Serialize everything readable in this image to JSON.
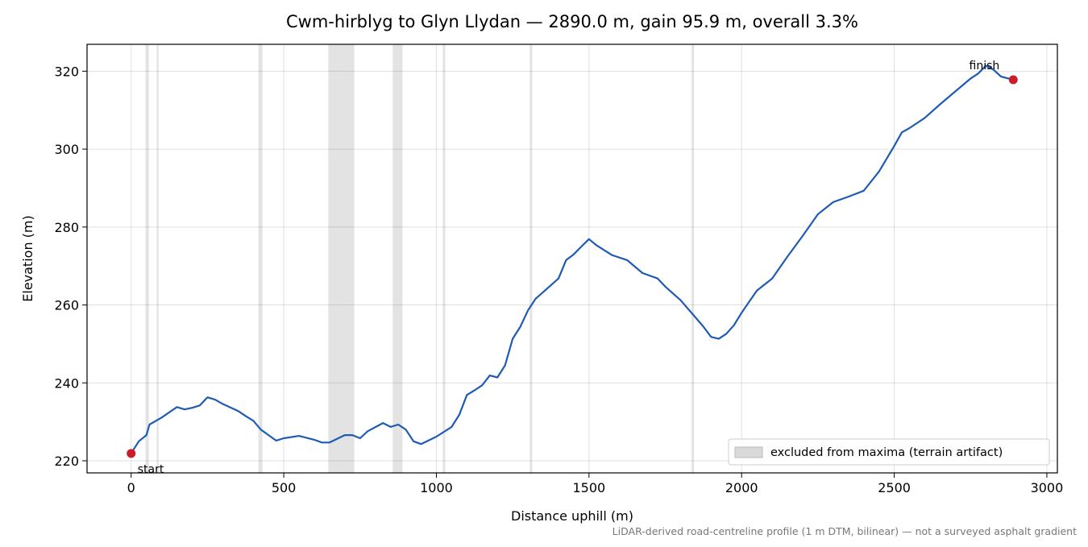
{
  "chart_data": {
    "type": "line",
    "title": "Cwm-hirblyg to Glyn Llydan — 2890.0 m, gain 95.9 m, overall 3.3%",
    "x_label": "Distance uphill (m)",
    "y_label": "Elevation (m)",
    "footnote": "LiDAR-derived road-centreline profile (1 m DTM, bilinear) — not a surveyed asphalt gradient",
    "x": [
      0,
      25,
      50,
      60,
      100,
      150,
      175,
      200,
      225,
      250,
      275,
      300,
      350,
      375,
      400,
      425,
      450,
      475,
      500,
      550,
      600,
      625,
      650,
      700,
      725,
      750,
      775,
      825,
      850,
      875,
      900,
      925,
      950,
      1000,
      1050,
      1075,
      1100,
      1125,
      1150,
      1175,
      1200,
      1225,
      1250,
      1275,
      1300,
      1325,
      1350,
      1400,
      1425,
      1450,
      1475,
      1500,
      1525,
      1575,
      1625,
      1675,
      1725,
      1750,
      1800,
      1850,
      1875,
      1900,
      1925,
      1950,
      1975,
      2000,
      2050,
      2100,
      2150,
      2200,
      2250,
      2300,
      2350,
      2400,
      2450,
      2500,
      2525,
      2550,
      2600,
      2650,
      2700,
      2750,
      2775,
      2800,
      2825,
      2850,
      2890
    ],
    "values": [
      221.9,
      225,
      226.6,
      229.3,
      231.1,
      233.8,
      233.2,
      233.6,
      234.2,
      236.3,
      235.7,
      234.6,
      232.8,
      231.5,
      230.3,
      228,
      226.6,
      225.2,
      225.8,
      226.4,
      225.4,
      224.7,
      224.7,
      226.6,
      226.6,
      225.8,
      227.6,
      229.7,
      228.7,
      229.3,
      228,
      225,
      224.3,
      226.2,
      228.7,
      231.8,
      236.9,
      238.1,
      239.4,
      241.9,
      241.4,
      244.5,
      251.3,
      254.4,
      258.6,
      261.6,
      263.3,
      266.8,
      271.5,
      273,
      275,
      276.9,
      275.3,
      272.8,
      271.5,
      268.2,
      266.8,
      264.7,
      261.2,
      256.7,
      254.4,
      251.8,
      251.3,
      252.6,
      254.8,
      258,
      263.7,
      266.8,
      272.4,
      277.7,
      283.3,
      286.4,
      287.8,
      289.3,
      294.2,
      300.8,
      304.3,
      305.4,
      308,
      311.5,
      314.8,
      318.1,
      319.4,
      321.4,
      320.4,
      318.6,
      317.8
    ],
    "color": "#1f5bb4",
    "excluded": {
      "label": "excluded from maxima (terrain artifact)",
      "color": "#d9d9d9",
      "ranges": [
        [
          47,
          58
        ],
        [
          84,
          90
        ],
        [
          417,
          430
        ],
        [
          646,
          731
        ],
        [
          857,
          889
        ],
        [
          1021,
          1029
        ],
        [
          1306,
          1314
        ],
        [
          1836,
          1844
        ]
      ]
    },
    "markers": [
      {
        "label": "start",
        "x": 0,
        "y": 221.9
      },
      {
        "label": "finish",
        "x": 2890,
        "y": 317.8
      }
    ],
    "marker_color": "#c81e2a",
    "xlim": [
      -144.5,
      3034.5
    ],
    "xticks": [
      0,
      500,
      1000,
      1500,
      2000,
      2500,
      3000
    ],
    "ylim": [
      216.9,
      326.9
    ],
    "yticks": [
      220,
      240,
      260,
      280,
      300,
      320
    ],
    "grid": true,
    "legend": "lower right"
  }
}
